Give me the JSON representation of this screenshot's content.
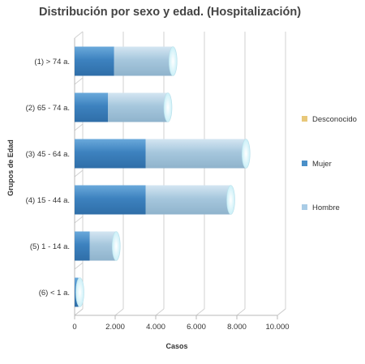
{
  "chart_data": {
    "type": "bar",
    "orientation": "horizontal",
    "stacked": true,
    "three_d": true,
    "title": "Distribución por sexo y edad. (Hospitalización)",
    "xlabel": "Casos",
    "ylabel": "Grupos de Edad",
    "categories": [
      "(1) > 74 a.",
      "(2) 65 - 74 a.",
      "(3) 45 - 64 a.",
      "(4) 15 - 44 a.",
      "(5) 1 - 14 a.",
      "(6) < 1 a."
    ],
    "series": [
      {
        "name": "Desconocido",
        "color": "#e8c87a",
        "values": [
          0,
          0,
          0,
          0,
          0,
          0
        ]
      },
      {
        "name": "Mujer",
        "color": "#4a8fc8",
        "values": [
          1950,
          1650,
          3500,
          3500,
          750,
          180
        ]
      },
      {
        "name": "Hombre",
        "color": "#a9cce6",
        "values": [
          2900,
          2950,
          4950,
          4200,
          1300,
          80
        ]
      }
    ],
    "xlim": [
      0,
      10000
    ],
    "xticks": [
      0,
      2000,
      4000,
      6000,
      8000,
      10000
    ],
    "xtick_labels": [
      "0",
      "2.000",
      "4.000",
      "6.000",
      "8.000",
      "10.000"
    ],
    "grid": true,
    "legend_position": "right"
  }
}
